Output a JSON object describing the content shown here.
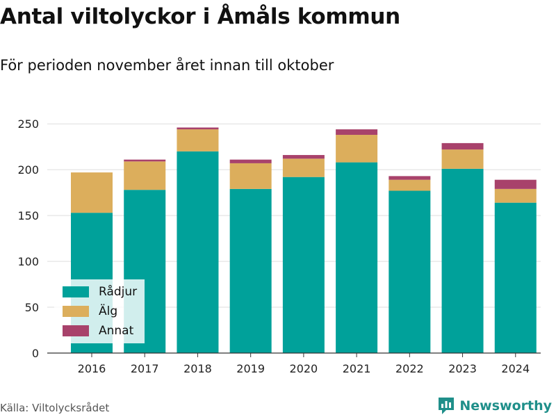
{
  "header": {
    "title": "Antal viltolyckor i Åmåls kommun",
    "subtitle": "För perioden november året innan till oktober"
  },
  "footer": {
    "source": "Källa: Viltolycksrådet",
    "brand": "Newsworthy",
    "brand_icon": "newsworthy-logo-icon"
  },
  "chart_data": {
    "type": "bar",
    "stacked": true,
    "categories": [
      "2016",
      "2017",
      "2018",
      "2019",
      "2020",
      "2021",
      "2022",
      "2023",
      "2024"
    ],
    "series": [
      {
        "name": "Rådjur",
        "color": "#00a19a",
        "values": [
          153,
          178,
          220,
          179,
          192,
          208,
          177,
          201,
          164
        ]
      },
      {
        "name": "Älg",
        "color": "#dcae5c",
        "values": [
          44,
          31,
          24,
          28,
          20,
          30,
          12,
          21,
          15
        ]
      },
      {
        "name": "Annat",
        "color": "#a8426b",
        "values": [
          0,
          2,
          2,
          4,
          4,
          6,
          4,
          7,
          10
        ]
      }
    ],
    "ylim": [
      0,
      260
    ],
    "yticks": [
      0,
      50,
      100,
      150,
      200,
      250
    ],
    "grid": true,
    "legend_position": "bottom-left"
  }
}
